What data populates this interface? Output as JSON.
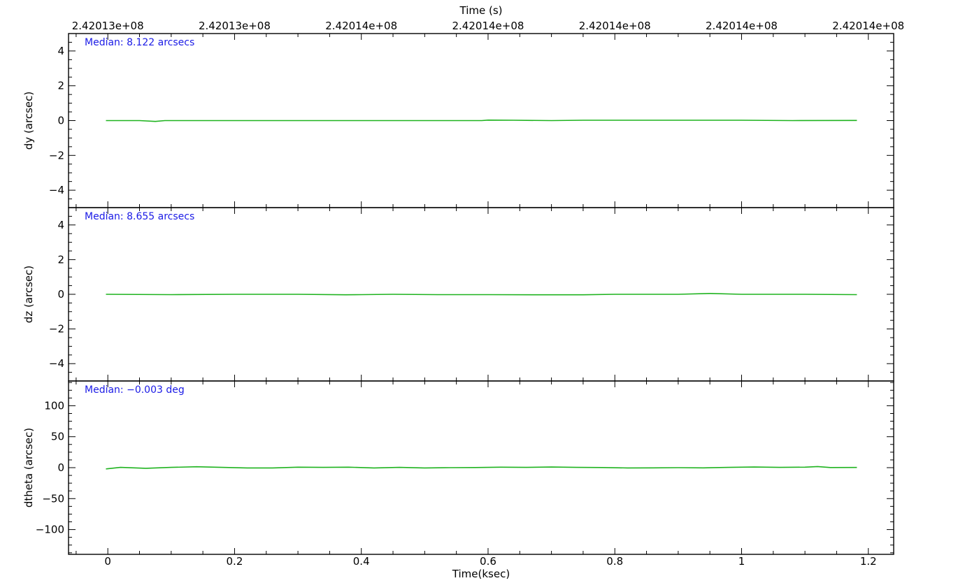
{
  "chart_data": {
    "type": "line",
    "colors": {
      "axes": "#000000",
      "series": "#1fb31f",
      "annotation": "#1a1ae6"
    },
    "top_axis": {
      "label": "Time (s)",
      "tick_positions_ksec": [
        0,
        0.2,
        0.4,
        0.6,
        0.8,
        1.0,
        1.2
      ],
      "tick_labels": [
        "2.42013e+08",
        "2.42013e+08",
        "2.42014e+08",
        "2.42014e+08",
        "2.42014e+08",
        "2.42014e+08",
        "2.42014e+08"
      ]
    },
    "bottom_axis": {
      "label": "Time(ksec)",
      "xlim": [
        -0.062,
        1.24
      ],
      "ticks": [
        0,
        0.2,
        0.4,
        0.6,
        0.8,
        1.0,
        1.2
      ],
      "tick_labels": [
        "0",
        "0.2",
        "0.4",
        "0.6",
        "0.8",
        "1",
        "1.2"
      ]
    },
    "panels": [
      {
        "ylabel": "dy (arcsec)",
        "ylim": [
          -5,
          5
        ],
        "yticks": [
          -4,
          -2,
          0,
          2,
          4
        ],
        "ytick_labels": [
          "−4",
          "−2",
          "0",
          "2",
          "4"
        ],
        "annotation": "Median: 8.122 arcsecs",
        "x": [
          -0.003,
          0.05,
          0.075,
          0.09,
          0.2,
          0.35,
          0.5,
          0.59,
          0.6,
          0.64,
          0.7,
          0.75,
          0.9,
          1.0,
          1.08,
          1.182
        ],
        "y": [
          0.0,
          0.0,
          -0.05,
          0.0,
          0.0,
          0.0,
          0.0,
          0.0,
          0.03,
          0.02,
          0.0,
          0.02,
          0.02,
          0.02,
          0.0,
          0.01
        ]
      },
      {
        "ylabel": "dz (arcsec)",
        "ylim": [
          -5,
          5
        ],
        "yticks": [
          -4,
          -2,
          0,
          2,
          4
        ],
        "ytick_labels": [
          "−4",
          "−2",
          "0",
          "2",
          "4"
        ],
        "annotation": "Median: 8.655 arcsecs",
        "x": [
          -0.003,
          0.1,
          0.2,
          0.3,
          0.375,
          0.4,
          0.45,
          0.52,
          0.6,
          0.7,
          0.75,
          0.8,
          0.9,
          0.95,
          1.0,
          1.1,
          1.182
        ],
        "y": [
          0.0,
          -0.02,
          0.0,
          0.0,
          -0.03,
          -0.02,
          0.0,
          -0.02,
          -0.02,
          -0.03,
          -0.03,
          0.0,
          0.0,
          0.05,
          0.0,
          0.0,
          -0.02
        ]
      },
      {
        "ylabel": "dtheta (arcsec)",
        "ylim": [
          -140,
          140
        ],
        "yticks": [
          -100,
          -50,
          0,
          50,
          100
        ],
        "ytick_labels": [
          "−100",
          "−50",
          "0",
          "50",
          "100"
        ],
        "annotation": "Median: −0.003 deg",
        "x": [
          -0.003,
          0.02,
          0.06,
          0.1,
          0.14,
          0.18,
          0.22,
          0.26,
          0.3,
          0.34,
          0.38,
          0.42,
          0.46,
          0.5,
          0.54,
          0.58,
          0.62,
          0.66,
          0.7,
          0.74,
          0.78,
          0.82,
          0.86,
          0.9,
          0.94,
          0.98,
          1.02,
          1.06,
          1.1,
          1.12,
          1.14,
          1.182
        ],
        "y": [
          -2.0,
          0.5,
          -1.0,
          0.5,
          1.5,
          0.5,
          -0.5,
          -0.5,
          0.8,
          0.5,
          0.8,
          -0.5,
          0.5,
          -0.5,
          0.0,
          0.2,
          0.8,
          0.5,
          1.0,
          0.5,
          0.2,
          -0.5,
          -0.3,
          0.0,
          -0.3,
          0.5,
          1.0,
          0.5,
          0.8,
          1.8,
          0.2,
          0.3
        ]
      }
    ]
  }
}
